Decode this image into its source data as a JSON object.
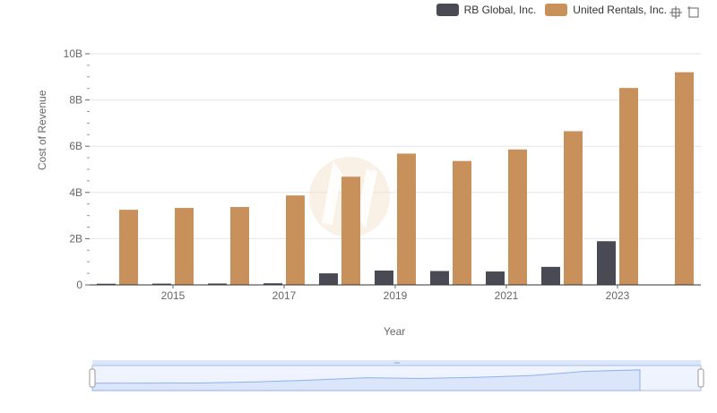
{
  "legend": {
    "series0": "RB Global, Inc.",
    "series1": "United Rentals, Inc."
  },
  "toolbox": {
    "zoom_icon": "zoom-icon",
    "restore_icon": "restore-icon"
  },
  "colors": {
    "series0": "#4a4a55",
    "series1": "#c8905a",
    "grid": "#e6e6e6",
    "axis": "#333333",
    "slider_fill": "#dbe6fb",
    "slider_border": "#a9bde9",
    "slider_line": "#8fb0f2"
  },
  "chart_data": {
    "type": "bar",
    "xlabel": "Year",
    "ylabel": "Cost of Revenue",
    "ylim": [
      0,
      10000000000
    ],
    "yticks": [
      "0",
      "2B",
      "4B",
      "6B",
      "8B",
      "10B"
    ],
    "categories": [
      "2014",
      "2015",
      "2016",
      "2017",
      "2018",
      "2019",
      "2020",
      "2021",
      "2022",
      "2023",
      "2024"
    ],
    "xtick_labels": [
      "2015",
      "2017",
      "2019",
      "2021",
      "2023"
    ],
    "series": [
      {
        "name": "RB Global, Inc.",
        "values": [
          50000000,
          55000000,
          60000000,
          70000000,
          500000000,
          620000000,
          600000000,
          580000000,
          780000000,
          1890000000,
          null
        ]
      },
      {
        "name": "United Rentals, Inc.",
        "values": [
          3250000000,
          3330000000,
          3370000000,
          3870000000,
          4680000000,
          5680000000,
          5360000000,
          5860000000,
          6650000000,
          8520000000,
          9200000000
        ]
      }
    ],
    "grid": true,
    "legend_position": "top-right"
  }
}
